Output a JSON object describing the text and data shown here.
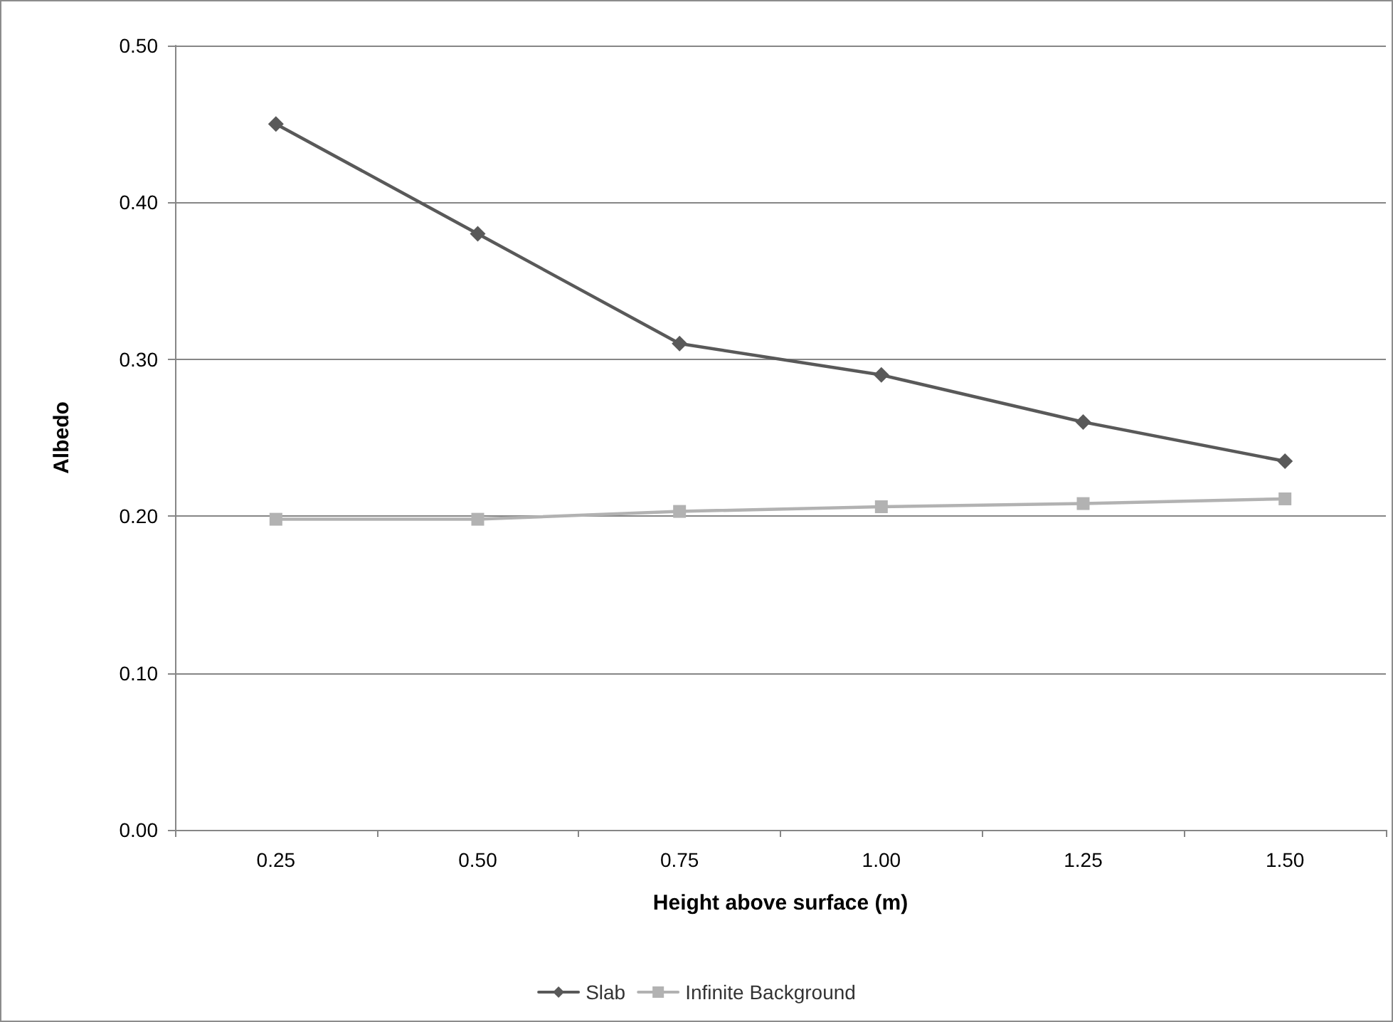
{
  "chart_data": {
    "type": "line",
    "xlabel": "Height above surface (m)",
    "ylabel": "Albedo",
    "categories": [
      "0.25",
      "0.50",
      "0.75",
      "1.00",
      "1.25",
      "1.50"
    ],
    "series": [
      {
        "name": "Slab",
        "color": "#595959",
        "marker": "diamond",
        "values": [
          0.45,
          0.38,
          0.31,
          0.29,
          0.26,
          0.235
        ]
      },
      {
        "name": "Infinite Background",
        "color": "#b2b2b2",
        "marker": "square",
        "values": [
          0.198,
          0.198,
          0.203,
          0.206,
          0.208,
          0.211
        ]
      }
    ],
    "ylim": [
      0,
      0.5
    ],
    "yticks": [
      {
        "value": 0,
        "label": "0.00"
      },
      {
        "value": 0.1,
        "label": "0.10"
      },
      {
        "value": 0.2,
        "label": "0.20"
      },
      {
        "value": 0.3,
        "label": "0.30"
      },
      {
        "value": 0.4,
        "label": "0.40"
      },
      {
        "value": 0.5,
        "label": "0.50"
      }
    ],
    "grid": "y",
    "legend": "bottom",
    "line_style": "solid"
  }
}
